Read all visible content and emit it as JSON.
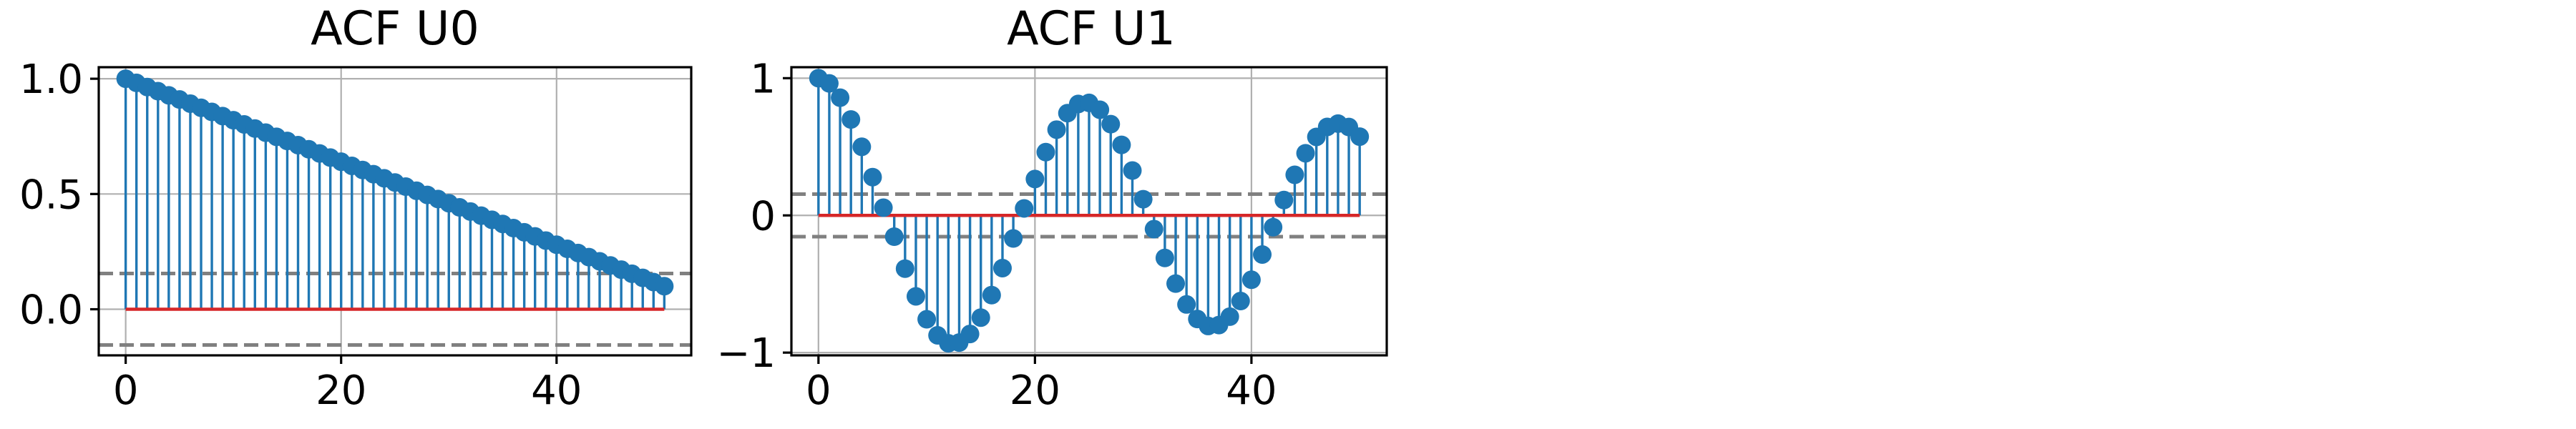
{
  "chart_data": [
    {
      "type": "stem",
      "title": "ACF U0",
      "xlabel": "",
      "ylabel": "",
      "x_ticks": [
        0,
        20,
        40
      ],
      "x_tick_labels": [
        "0",
        "20",
        "40"
      ],
      "y_ticks": [
        0,
        0.5,
        1.0
      ],
      "y_tick_labels": [
        "0.0",
        "0.5",
        "1.0"
      ],
      "xlim": [
        -2.5,
        52.5
      ],
      "ylim": [
        -0.2,
        1.05
      ],
      "grid": true,
      "baseline": 0,
      "confidence_band": [
        -0.155,
        0.155
      ],
      "colors": {
        "stem": "#1f77b4",
        "baseline": "#d62728",
        "band": "#808080"
      },
      "series": [
        {
          "x": [
            0,
            1,
            2,
            3,
            4,
            5,
            6,
            7,
            8,
            9,
            10,
            11,
            12,
            13,
            14,
            15,
            16,
            17,
            18,
            19,
            20,
            21,
            22,
            23,
            24,
            25,
            26,
            27,
            28,
            29,
            30,
            31,
            32,
            33,
            34,
            35,
            36,
            37,
            38,
            39,
            40,
            41,
            42,
            43,
            44,
            45,
            46,
            47,
            48,
            49,
            50
          ],
          "values": [
            1.0,
            0.982,
            0.964,
            0.946,
            0.928,
            0.91,
            0.892,
            0.874,
            0.856,
            0.838,
            0.82,
            0.802,
            0.784,
            0.766,
            0.748,
            0.73,
            0.712,
            0.694,
            0.676,
            0.658,
            0.64,
            0.622,
            0.604,
            0.586,
            0.568,
            0.55,
            0.532,
            0.514,
            0.496,
            0.478,
            0.46,
            0.442,
            0.424,
            0.406,
            0.388,
            0.37,
            0.352,
            0.334,
            0.316,
            0.298,
            0.28,
            0.262,
            0.244,
            0.226,
            0.208,
            0.19,
            0.172,
            0.154,
            0.136,
            0.118,
            0.1
          ]
        }
      ]
    },
    {
      "type": "stem",
      "title": "ACF U1",
      "xlabel": "",
      "ylabel": "",
      "x_ticks": [
        0,
        20,
        40
      ],
      "x_tick_labels": [
        "0",
        "20",
        "40"
      ],
      "y_ticks": [
        -1,
        0,
        1
      ],
      "y_tick_labels": [
        "−1",
        "0",
        "1"
      ],
      "xlim": [
        -2.5,
        52.5
      ],
      "ylim": [
        -1.02,
        1.08
      ],
      "grid": true,
      "baseline": 0,
      "confidence_band": [
        -0.155,
        0.155
      ],
      "colors": {
        "stem": "#1f77b4",
        "baseline": "#d62728",
        "band": "#808080"
      },
      "series": [
        {
          "x": [
            0,
            1,
            2,
            3,
            4,
            5,
            6,
            7,
            8,
            9,
            10,
            11,
            12,
            13,
            14,
            15,
            16,
            17,
            18,
            19,
            20,
            21,
            22,
            23,
            24,
            25,
            26,
            27,
            28,
            29,
            30,
            31,
            32,
            33,
            34,
            35,
            36,
            37,
            38,
            39,
            40,
            41,
            42,
            43,
            44,
            45,
            46,
            47,
            48,
            49,
            50
          ],
          "values": [
            1.0,
            0.962,
            0.858,
            0.699,
            0.5,
            0.279,
            0.056,
            -0.155,
            -0.388,
            -0.59,
            -0.757,
            -0.874,
            -0.932,
            -0.927,
            -0.864,
            -0.745,
            -0.581,
            -0.384,
            -0.168,
            0.051,
            0.265,
            0.461,
            0.625,
            0.745,
            0.812,
            0.82,
            0.77,
            0.665,
            0.514,
            0.327,
            0.118,
            -0.1,
            -0.31,
            -0.497,
            -0.649,
            -0.755,
            -0.806,
            -0.799,
            -0.738,
            -0.624,
            -0.469,
            -0.285,
            -0.086,
            0.112,
            0.296,
            0.453,
            0.572,
            0.645,
            0.669,
            0.644,
            0.574
          ]
        }
      ]
    }
  ]
}
